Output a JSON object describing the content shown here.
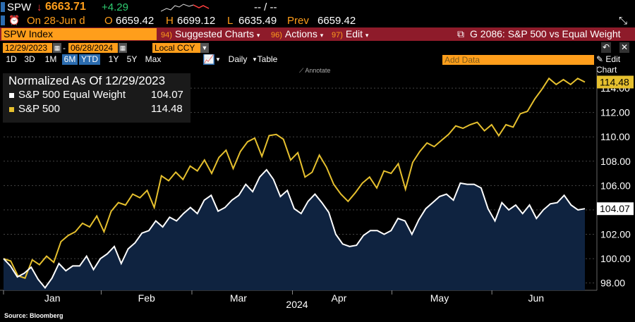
{
  "quote": {
    "ticker": "SPW",
    "last": "6663.71",
    "change": "+4.29",
    "bidask": "-- / --"
  },
  "session": {
    "date_text": "On 28-Jun d",
    "open_label": "O",
    "open": "6659.42",
    "high_label": "H",
    "high": "6699.12",
    "low_label": "L",
    "low": "6635.49",
    "prev_label": "Prev",
    "prev": "6659.42"
  },
  "menubar": {
    "security": "SPW Index",
    "suggested_num": "94)",
    "suggested": "Suggested Charts",
    "actions_num": "96)",
    "actions": "Actions",
    "edit_num": "97)",
    "edit": "Edit",
    "chart_title": "G 2086: S&P 500 vs Equal Weight"
  },
  "controls": {
    "start_date": "12/29/2023",
    "end_date": "06/28/2024",
    "currency": "Local CCY",
    "periods": [
      "1D",
      "3D",
      "1M",
      "6M",
      "YTD",
      "1Y",
      "5Y",
      "Max"
    ],
    "active_periods": [
      "6M",
      "YTD"
    ],
    "frequency": "Daily",
    "table_label": "Table",
    "add_data_placeholder": "Add Data",
    "edit_chart": "Edit Chart",
    "annotate": "Annotate"
  },
  "legend": {
    "title": "Normalized As Of 12/29/2023",
    "items": [
      {
        "name": "S&P 500 Equal Weight",
        "value": "104.07",
        "color": "#ffffff"
      },
      {
        "name": "S&P 500",
        "value": "114.48",
        "color": "#e6c02e"
      }
    ]
  },
  "source": "Source: Bloomberg",
  "colors": {
    "accent": "#ff9e1b",
    "menubar": "#8e1b2a",
    "gold_line": "#e6c02e",
    "area_fill": "#0f2340",
    "up": "#2ecc71",
    "down": "#ff3b3b"
  },
  "chart_data": {
    "type": "line",
    "title": "",
    "xlabel": "2024",
    "ylabel": "",
    "x_ticks": [
      "Jan",
      "Feb",
      "Mar",
      "Apr",
      "May",
      "Jun"
    ],
    "y_ticks": [
      "98.00",
      "100.00",
      "102.00",
      "104.00",
      "106.00",
      "108.00",
      "110.00",
      "112.00",
      "114.00"
    ],
    "ylim": [
      97.4,
      115.8
    ],
    "last_labels": [
      "114.48",
      "104.07"
    ],
    "grid": true,
    "series": [
      {
        "name": "S&P 500",
        "color": "#e6c02e",
        "values": [
          100.0,
          99.8,
          98.6,
          98.4,
          99.9,
          99.5,
          100.2,
          99.7,
          101.4,
          101.9,
          102.2,
          102.9,
          102.6,
          103.5,
          102.2,
          103.9,
          104.6,
          104.4,
          105.3,
          105.0,
          105.6,
          104.2,
          106.8,
          106.4,
          107.1,
          106.5,
          107.6,
          107.2,
          108.1,
          107.0,
          108.3,
          108.9,
          107.4,
          108.8,
          109.6,
          109.9,
          108.4,
          110.1,
          110.2,
          109.8,
          108.1,
          108.7,
          106.7,
          107.1,
          108.5,
          107.5,
          106.1,
          105.3,
          104.7,
          105.4,
          106.2,
          106.7,
          105.8,
          107.2,
          107.0,
          107.8,
          105.7,
          107.9,
          108.8,
          109.5,
          109.2,
          109.7,
          110.2,
          110.9,
          110.7,
          111.0,
          111.2,
          110.5,
          111.0,
          110.1,
          111.0,
          110.8,
          111.9,
          112.1,
          113.1,
          113.9,
          114.8,
          114.3,
          114.7,
          114.3,
          114.8,
          114.5
        ]
      },
      {
        "name": "S&P 500 Equal Weight",
        "color": "#ffffff",
        "values": [
          100.0,
          99.4,
          98.5,
          98.8,
          99.3,
          98.3,
          97.6,
          98.4,
          99.6,
          99.0,
          99.4,
          99.4,
          100.2,
          99.1,
          100.0,
          100.4,
          101.0,
          99.6,
          100.8,
          101.3,
          102.1,
          102.3,
          103.1,
          102.6,
          103.4,
          103.1,
          103.7,
          104.2,
          103.7,
          104.8,
          105.2,
          103.9,
          104.2,
          104.8,
          105.2,
          106.1,
          105.5,
          106.7,
          107.3,
          106.5,
          105.1,
          105.6,
          104.1,
          103.7,
          104.7,
          105.3,
          104.6,
          103.8,
          102.0,
          101.2,
          101.0,
          101.1,
          101.9,
          102.3,
          102.3,
          102.0,
          102.3,
          103.3,
          103.1,
          102.0,
          103.2,
          104.1,
          104.6,
          105.1,
          105.3,
          104.8,
          106.2,
          106.1,
          106.1,
          105.8,
          104.1,
          103.1,
          104.6,
          104.0,
          104.4,
          103.7,
          104.4,
          103.3,
          104.0,
          104.5,
          104.6,
          105.2,
          104.4,
          104.0,
          104.1
        ]
      }
    ]
  }
}
